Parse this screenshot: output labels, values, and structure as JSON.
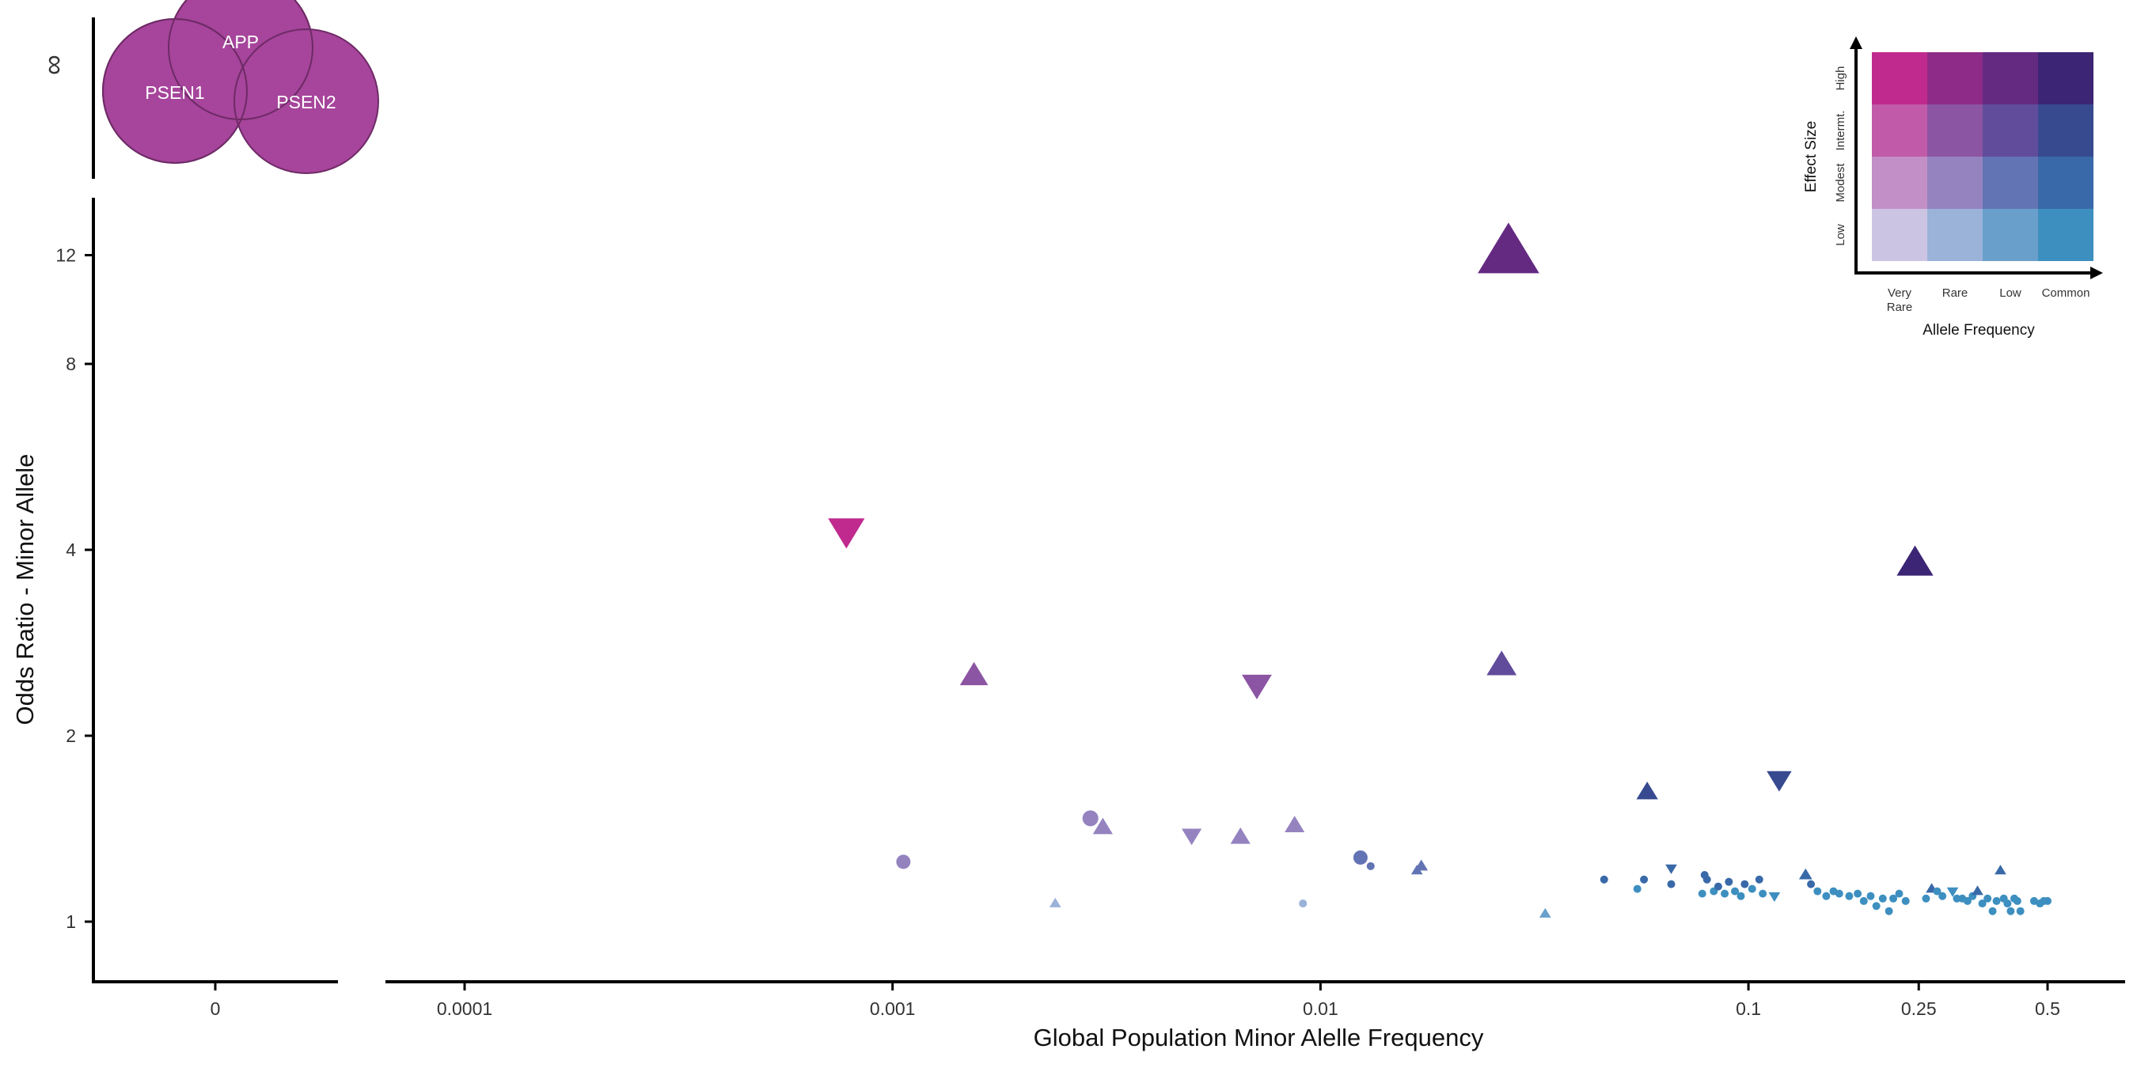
{
  "chart_data": {
    "type": "scatter",
    "title": "",
    "xlabel": "Global Population Minor Alelle Frequency",
    "ylabel": "Odds Ratio - Minor Allele",
    "x_scale": "log",
    "y_scale": "log",
    "xlim": [
      8e-05,
      0.75
    ],
    "ylim": [
      0.88,
      14
    ],
    "x_ticks": [
      {
        "value": 0.0001,
        "label": "0.0001"
      },
      {
        "value": 0.001,
        "label": "0.001"
      },
      {
        "value": 0.01,
        "label": "0.01"
      },
      {
        "value": 0.1,
        "label": "0.1"
      },
      {
        "value": 0.25,
        "label": "0.25"
      },
      {
        "value": 0.5,
        "label": "0.5"
      }
    ],
    "y_ticks": [
      {
        "value": 1,
        "label": "1"
      },
      {
        "value": 2,
        "label": "2"
      },
      {
        "value": 4,
        "label": "4"
      },
      {
        "value": 8,
        "label": "8"
      },
      {
        "value": 12,
        "label": "12"
      }
    ],
    "zero_panel": {
      "x_label": "0",
      "y_label": "∞"
    },
    "venn": {
      "color": "#a6459b",
      "labels": [
        "APP",
        "PSEN1",
        "PSEN2"
      ]
    },
    "legend": {
      "x_title": "Allele Frequency",
      "y_title": "Effect Size",
      "x_categories": [
        "Very Rare",
        "Rare",
        "Low",
        "Common"
      ],
      "y_categories": [
        "Low",
        "Modest",
        "Intermt.",
        "High"
      ],
      "colors": [
        [
          "#cbc4e2",
          "#9bb2d9",
          "#68a0cb",
          "#3d8fc0"
        ],
        [
          "#c28fc6",
          "#9583c0",
          "#6274b4",
          "#3969a8"
        ],
        [
          "#c15aa8",
          "#8c55a3",
          "#614c9b",
          "#374a90"
        ],
        [
          "#c02a8e",
          "#8e2b88",
          "#642a81",
          "#3b2574"
        ]
      ]
    },
    "points": [
      {
        "x": 0.00078,
        "y": 4.3,
        "shape": "triangle-down",
        "size": 22,
        "color": "#c02a8e"
      },
      {
        "x": 0.0275,
        "y": 12.1,
        "shape": "triangle-up",
        "size": 37,
        "color": "#642a81"
      },
      {
        "x": 0.245,
        "y": 3.8,
        "shape": "triangle-up",
        "size": 22,
        "color": "#3b2574"
      },
      {
        "x": 0.00155,
        "y": 2.5,
        "shape": "triangle-up",
        "size": 17,
        "color": "#8c55a3"
      },
      {
        "x": 0.0071,
        "y": 2.42,
        "shape": "triangle-down",
        "size": 18,
        "color": "#8c55a3"
      },
      {
        "x": 0.0265,
        "y": 2.6,
        "shape": "triangle-up",
        "size": 18,
        "color": "#614c9b"
      },
      {
        "x": 0.118,
        "y": 1.7,
        "shape": "triangle-down",
        "size": 15,
        "color": "#374a90"
      },
      {
        "x": 0.058,
        "y": 1.62,
        "shape": "triangle-up",
        "size": 13,
        "color": "#374a90"
      },
      {
        "x": 0.00106,
        "y": 1.25,
        "shape": "circle",
        "size": 9,
        "color": "#9583c0"
      },
      {
        "x": 0.0029,
        "y": 1.47,
        "shape": "circle",
        "size": 10,
        "color": "#9583c0"
      },
      {
        "x": 0.0031,
        "y": 1.42,
        "shape": "triangle-up",
        "size": 12,
        "color": "#9583c0"
      },
      {
        "x": 0.005,
        "y": 1.38,
        "shape": "triangle-down",
        "size": 12,
        "color": "#9583c0"
      },
      {
        "x": 0.0065,
        "y": 1.37,
        "shape": "triangle-up",
        "size": 12,
        "color": "#9583c0"
      },
      {
        "x": 0.0087,
        "y": 1.43,
        "shape": "triangle-up",
        "size": 12,
        "color": "#9583c0"
      },
      {
        "x": 0.0124,
        "y": 1.27,
        "shape": "circle",
        "size": 9,
        "color": "#6274b4"
      },
      {
        "x": 0.0131,
        "y": 1.23,
        "shape": "circle",
        "size": 5,
        "color": "#6274b4"
      },
      {
        "x": 0.0172,
        "y": 1.23,
        "shape": "triangle-up",
        "size": 8,
        "color": "#6274b4"
      },
      {
        "x": 0.0168,
        "y": 1.21,
        "shape": "triangle-up",
        "size": 7,
        "color": "#6274b4"
      },
      {
        "x": 0.0024,
        "y": 1.07,
        "shape": "triangle-up",
        "size": 7,
        "color": "#9bb2d9"
      },
      {
        "x": 0.0091,
        "y": 1.07,
        "shape": "circle",
        "size": 5,
        "color": "#9bb2d9"
      },
      {
        "x": 0.0335,
        "y": 1.03,
        "shape": "triangle-up",
        "size": 7,
        "color": "#68a0cb"
      },
      {
        "x": 0.046,
        "y": 1.17,
        "shape": "circle",
        "size": 5,
        "color": "#3969a8"
      },
      {
        "x": 0.055,
        "y": 1.13,
        "shape": "circle",
        "size": 5,
        "color": "#3d8fc0"
      },
      {
        "x": 0.057,
        "y": 1.17,
        "shape": "circle",
        "size": 5,
        "color": "#3969a8"
      },
      {
        "x": 0.066,
        "y": 1.22,
        "shape": "triangle-down",
        "size": 7,
        "color": "#3969a8"
      },
      {
        "x": 0.066,
        "y": 1.15,
        "shape": "circle",
        "size": 5,
        "color": "#3969a8"
      },
      {
        "x": 0.079,
        "y": 1.19,
        "shape": "circle",
        "size": 5,
        "color": "#3969a8"
      },
      {
        "x": 0.08,
        "y": 1.17,
        "shape": "circle",
        "size": 5,
        "color": "#3969a8"
      },
      {
        "x": 0.078,
        "y": 1.11,
        "shape": "circle",
        "size": 5,
        "color": "#3d8fc0"
      },
      {
        "x": 0.083,
        "y": 1.12,
        "shape": "circle",
        "size": 5,
        "color": "#3d8fc0"
      },
      {
        "x": 0.085,
        "y": 1.14,
        "shape": "circle",
        "size": 5,
        "color": "#3969a8"
      },
      {
        "x": 0.088,
        "y": 1.11,
        "shape": "circle",
        "size": 5,
        "color": "#3d8fc0"
      },
      {
        "x": 0.09,
        "y": 1.16,
        "shape": "circle",
        "size": 5,
        "color": "#3969a8"
      },
      {
        "x": 0.093,
        "y": 1.12,
        "shape": "circle",
        "size": 5,
        "color": "#3d8fc0"
      },
      {
        "x": 0.096,
        "y": 1.1,
        "shape": "circle",
        "size": 5,
        "color": "#3d8fc0"
      },
      {
        "x": 0.098,
        "y": 1.15,
        "shape": "circle",
        "size": 5,
        "color": "#3969a8"
      },
      {
        "x": 0.102,
        "y": 1.13,
        "shape": "circle",
        "size": 5,
        "color": "#3d8fc0"
      },
      {
        "x": 0.106,
        "y": 1.17,
        "shape": "circle",
        "size": 5,
        "color": "#3969a8"
      },
      {
        "x": 0.108,
        "y": 1.11,
        "shape": "circle",
        "size": 5,
        "color": "#3d8fc0"
      },
      {
        "x": 0.115,
        "y": 1.1,
        "shape": "triangle-down",
        "size": 7,
        "color": "#3d8fc0"
      },
      {
        "x": 0.136,
        "y": 1.19,
        "shape": "triangle-up",
        "size": 8,
        "color": "#3969a8"
      },
      {
        "x": 0.14,
        "y": 1.15,
        "shape": "circle",
        "size": 5,
        "color": "#3969a8"
      },
      {
        "x": 0.145,
        "y": 1.12,
        "shape": "circle",
        "size": 5,
        "color": "#3d8fc0"
      },
      {
        "x": 0.152,
        "y": 1.1,
        "shape": "circle",
        "size": 5,
        "color": "#3d8fc0"
      },
      {
        "x": 0.158,
        "y": 1.12,
        "shape": "circle",
        "size": 5,
        "color": "#3d8fc0"
      },
      {
        "x": 0.163,
        "y": 1.11,
        "shape": "circle",
        "size": 5,
        "color": "#3d8fc0"
      },
      {
        "x": 0.172,
        "y": 1.1,
        "shape": "circle",
        "size": 5,
        "color": "#3d8fc0"
      },
      {
        "x": 0.18,
        "y": 1.11,
        "shape": "circle",
        "size": 5,
        "color": "#3d8fc0"
      },
      {
        "x": 0.186,
        "y": 1.08,
        "shape": "circle",
        "size": 5,
        "color": "#3d8fc0"
      },
      {
        "x": 0.193,
        "y": 1.1,
        "shape": "circle",
        "size": 5,
        "color": "#3d8fc0"
      },
      {
        "x": 0.199,
        "y": 1.06,
        "shape": "circle",
        "size": 5,
        "color": "#3d8fc0"
      },
      {
        "x": 0.206,
        "y": 1.09,
        "shape": "circle",
        "size": 5,
        "color": "#3d8fc0"
      },
      {
        "x": 0.213,
        "y": 1.04,
        "shape": "circle",
        "size": 5,
        "color": "#3d8fc0"
      },
      {
        "x": 0.218,
        "y": 1.09,
        "shape": "circle",
        "size": 5,
        "color": "#3d8fc0"
      },
      {
        "x": 0.225,
        "y": 1.11,
        "shape": "circle",
        "size": 5,
        "color": "#3d8fc0"
      },
      {
        "x": 0.233,
        "y": 1.08,
        "shape": "circle",
        "size": 5,
        "color": "#3d8fc0"
      },
      {
        "x": 0.26,
        "y": 1.09,
        "shape": "circle",
        "size": 5,
        "color": "#3d8fc0"
      },
      {
        "x": 0.268,
        "y": 1.13,
        "shape": "triangle-up",
        "size": 7,
        "color": "#3969a8"
      },
      {
        "x": 0.276,
        "y": 1.12,
        "shape": "circle",
        "size": 5,
        "color": "#3d8fc0"
      },
      {
        "x": 0.284,
        "y": 1.1,
        "shape": "circle",
        "size": 5,
        "color": "#3d8fc0"
      },
      {
        "x": 0.3,
        "y": 1.12,
        "shape": "triangle-down",
        "size": 7,
        "color": "#3d8fc0"
      },
      {
        "x": 0.307,
        "y": 1.09,
        "shape": "circle",
        "size": 5,
        "color": "#3d8fc0"
      },
      {
        "x": 0.316,
        "y": 1.09,
        "shape": "circle",
        "size": 5,
        "color": "#3d8fc0"
      },
      {
        "x": 0.325,
        "y": 1.08,
        "shape": "circle",
        "size": 5,
        "color": "#3d8fc0"
      },
      {
        "x": 0.334,
        "y": 1.1,
        "shape": "circle",
        "size": 5,
        "color": "#3d8fc0"
      },
      {
        "x": 0.343,
        "y": 1.12,
        "shape": "triangle-up",
        "size": 7,
        "color": "#3969a8"
      },
      {
        "x": 0.352,
        "y": 1.07,
        "shape": "circle",
        "size": 5,
        "color": "#3d8fc0"
      },
      {
        "x": 0.362,
        "y": 1.09,
        "shape": "circle",
        "size": 5,
        "color": "#3d8fc0"
      },
      {
        "x": 0.372,
        "y": 1.04,
        "shape": "circle",
        "size": 5,
        "color": "#3d8fc0"
      },
      {
        "x": 0.38,
        "y": 1.08,
        "shape": "circle",
        "size": 5,
        "color": "#3d8fc0"
      },
      {
        "x": 0.388,
        "y": 1.21,
        "shape": "triangle-up",
        "size": 7,
        "color": "#3969a8"
      },
      {
        "x": 0.395,
        "y": 1.09,
        "shape": "circle",
        "size": 5,
        "color": "#3d8fc0"
      },
      {
        "x": 0.403,
        "y": 1.07,
        "shape": "circle",
        "size": 5,
        "color": "#3d8fc0"
      },
      {
        "x": 0.41,
        "y": 1.04,
        "shape": "circle",
        "size": 5,
        "color": "#3d8fc0"
      },
      {
        "x": 0.418,
        "y": 1.09,
        "shape": "circle",
        "size": 5,
        "color": "#3d8fc0"
      },
      {
        "x": 0.425,
        "y": 1.08,
        "shape": "circle",
        "size": 5,
        "color": "#3d8fc0"
      },
      {
        "x": 0.432,
        "y": 1.04,
        "shape": "circle",
        "size": 5,
        "color": "#3d8fc0"
      },
      {
        "x": 0.465,
        "y": 1.08,
        "shape": "circle",
        "size": 5,
        "color": "#3d8fc0"
      },
      {
        "x": 0.48,
        "y": 1.07,
        "shape": "circle",
        "size": 5,
        "color": "#3d8fc0"
      },
      {
        "x": 0.49,
        "y": 1.08,
        "shape": "circle",
        "size": 5,
        "color": "#3d8fc0"
      },
      {
        "x": 0.5,
        "y": 1.08,
        "shape": "circle",
        "size": 5,
        "color": "#3d8fc0"
      }
    ]
  }
}
